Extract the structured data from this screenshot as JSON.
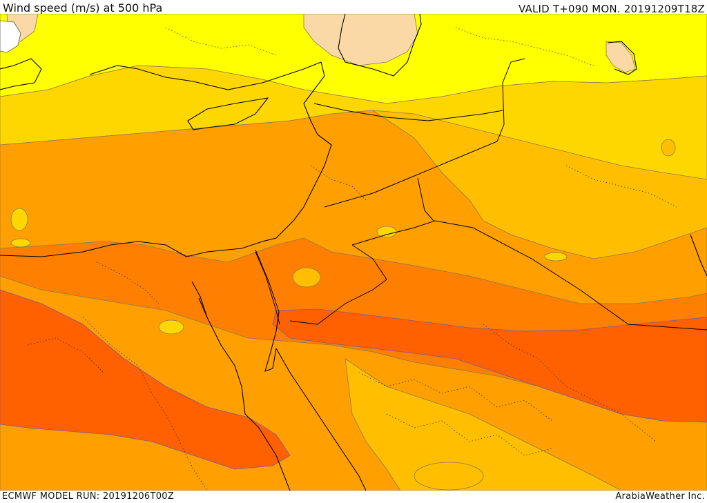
{
  "header": {
    "title": "Wind speed (m/s) at 500 hPa",
    "valid": "VALID T+090 MON. 20191209T18Z"
  },
  "footer": {
    "model_run": "ECMWF MODEL RUN: 20191206T00Z",
    "credit": "ArabiaWeather Inc."
  },
  "legend_colors": {
    "white": "#ffffff",
    "light_peach": "#fbd9a6",
    "yellow": "#ffff00",
    "light_orange": "#ffd700",
    "amber": "#ffbf00",
    "orange": "#ff9f00",
    "dark_orange": "#ff7f00",
    "red_orange": "#ff6000"
  }
}
